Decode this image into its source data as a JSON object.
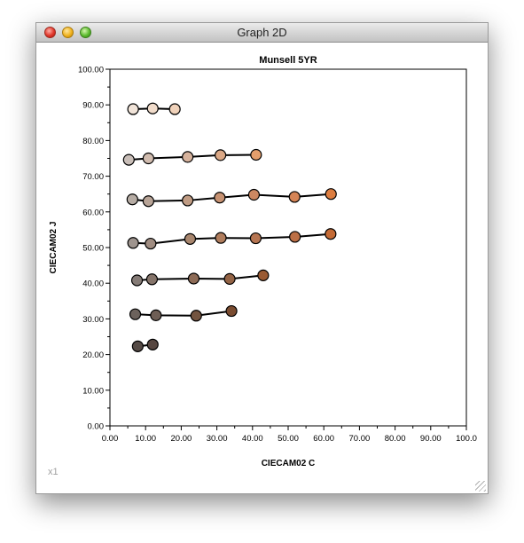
{
  "window": {
    "title": "Graph 2D",
    "zoom": "x1"
  },
  "chart_data": {
    "type": "line",
    "title": "Munsell 5YR",
    "xlabel": "CIECAM02 C",
    "ylabel": "CIECAM02 J",
    "xlim": [
      0,
      100
    ],
    "ylim": [
      0,
      100
    ],
    "xticks": [
      "0.00",
      "10.00",
      "20.00",
      "30.00",
      "40.00",
      "50.00",
      "60.00",
      "70.00",
      "80.00",
      "90.00",
      "100.0"
    ],
    "yticks": [
      "0.00",
      "10.00",
      "20.00",
      "30.00",
      "40.00",
      "50.00",
      "60.00",
      "70.00",
      "80.00",
      "90.00",
      "100.00"
    ],
    "grid": false,
    "series": [
      {
        "points": [
          {
            "x": 6.5,
            "y": 88.8,
            "color": "#f1e4d9"
          },
          {
            "x": 12.0,
            "y": 89.0,
            "color": "#f1dccb"
          },
          {
            "x": 18.2,
            "y": 88.8,
            "color": "#f0d2ba"
          }
        ]
      },
      {
        "points": [
          {
            "x": 5.3,
            "y": 74.6,
            "color": "#c9beb8"
          },
          {
            "x": 10.8,
            "y": 75.0,
            "color": "#d1bcaf"
          },
          {
            "x": 21.8,
            "y": 75.4,
            "color": "#d6b29c"
          },
          {
            "x": 31.0,
            "y": 75.9,
            "color": "#dba886"
          },
          {
            "x": 41.0,
            "y": 76.0,
            "color": "#e49e6c"
          }
        ]
      },
      {
        "points": [
          {
            "x": 6.3,
            "y": 63.5,
            "color": "#b6aca4"
          },
          {
            "x": 10.8,
            "y": 63.0,
            "color": "#b8a497"
          },
          {
            "x": 21.8,
            "y": 63.2,
            "color": "#c09c84"
          },
          {
            "x": 30.8,
            "y": 64.0,
            "color": "#c79272"
          },
          {
            "x": 40.4,
            "y": 64.8,
            "color": "#cc8862"
          },
          {
            "x": 51.8,
            "y": 64.2,
            "color": "#d58456"
          },
          {
            "x": 62.0,
            "y": 65.0,
            "color": "#dd7d40"
          }
        ]
      },
      {
        "points": [
          {
            "x": 6.5,
            "y": 51.3,
            "color": "#9e948e"
          },
          {
            "x": 11.4,
            "y": 51.1,
            "color": "#a08d82"
          },
          {
            "x": 22.5,
            "y": 52.4,
            "color": "#a8866e"
          },
          {
            "x": 31.1,
            "y": 52.7,
            "color": "#b07d5d"
          },
          {
            "x": 40.9,
            "y": 52.6,
            "color": "#b67552"
          },
          {
            "x": 51.9,
            "y": 53.0,
            "color": "#bc6f45"
          },
          {
            "x": 61.9,
            "y": 53.8,
            "color": "#c46a35"
          }
        ]
      },
      {
        "points": [
          {
            "x": 7.6,
            "y": 40.8,
            "color": "#857b76"
          },
          {
            "x": 11.8,
            "y": 41.1,
            "color": "#85746a"
          },
          {
            "x": 23.5,
            "y": 41.3,
            "color": "#8d6b56"
          },
          {
            "x": 33.6,
            "y": 41.2,
            "color": "#936345"
          },
          {
            "x": 43.0,
            "y": 42.2,
            "color": "#9a5a33"
          }
        ]
      },
      {
        "points": [
          {
            "x": 7.1,
            "y": 31.3,
            "color": "#6c625c"
          },
          {
            "x": 12.9,
            "y": 31.0,
            "color": "#6e5e55"
          },
          {
            "x": 24.2,
            "y": 30.9,
            "color": "#735440"
          },
          {
            "x": 34.1,
            "y": 32.2,
            "color": "#7a4c30"
          }
        ]
      },
      {
        "points": [
          {
            "x": 7.8,
            "y": 22.3,
            "color": "#554a45"
          },
          {
            "x": 12.0,
            "y": 22.8,
            "color": "#564640"
          }
        ]
      }
    ]
  }
}
